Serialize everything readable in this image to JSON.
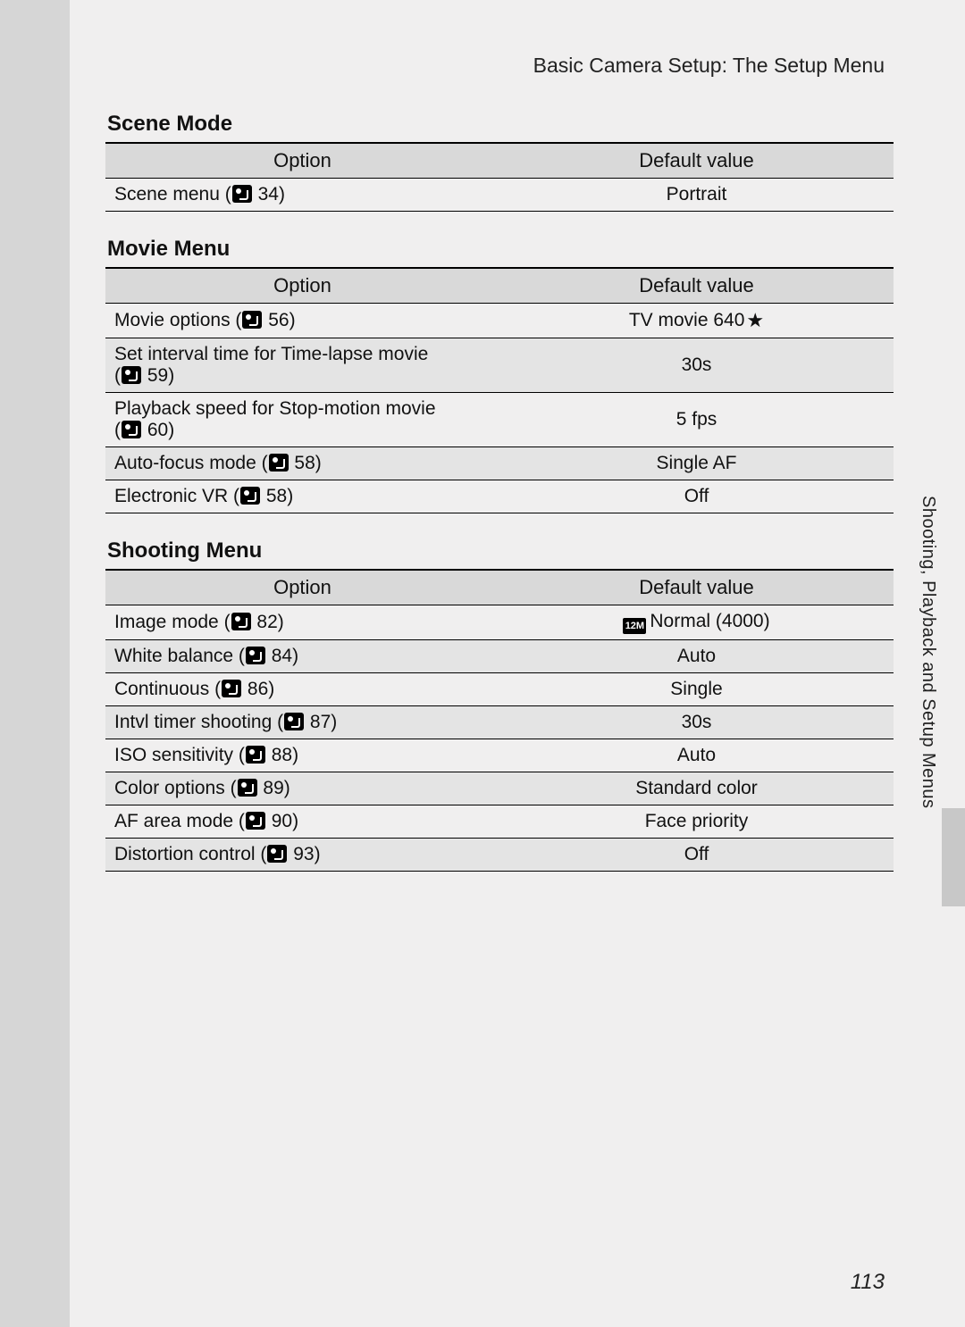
{
  "header": "Basic Camera Setup: The Setup Menu",
  "sideLabel": "Shooting, Playback and Setup Menus",
  "pageNumber": "113",
  "columns": {
    "option": "Option",
    "value": "Default value"
  },
  "sections": {
    "scene": {
      "title": "Scene Mode",
      "rows": [
        {
          "label": "Scene menu",
          "ref": "34",
          "value": "Portrait"
        }
      ]
    },
    "movie": {
      "title": "Movie Menu",
      "rows": [
        {
          "label": "Movie options",
          "ref": "56",
          "value": "TV movie 640",
          "valueStar": true
        },
        {
          "label": "Set interval time for Time-lapse movie",
          "ref": "59",
          "refNewline": true,
          "value": "30s"
        },
        {
          "label": "Playback speed for Stop-motion movie",
          "ref": "60",
          "refNewline": true,
          "value": "5 fps"
        },
        {
          "label": "Auto-focus mode",
          "ref": "58",
          "value": "Single AF"
        },
        {
          "label": "Electronic VR",
          "ref": "58",
          "value": "Off"
        }
      ]
    },
    "shooting": {
      "title": "Shooting Menu",
      "rows": [
        {
          "label": "Image mode",
          "ref": "82",
          "value": "Normal (4000)",
          "valueImgBadge": "12M"
        },
        {
          "label": "White balance",
          "ref": "84",
          "value": "Auto"
        },
        {
          "label": "Continuous",
          "ref": "86",
          "value": "Single"
        },
        {
          "label": "Intvl timer shooting",
          "ref": "87",
          "value": "30s"
        },
        {
          "label": "ISO sensitivity",
          "ref": "88",
          "value": "Auto"
        },
        {
          "label": "Color options",
          "ref": "89",
          "value": "Standard color"
        },
        {
          "label": "AF area mode",
          "ref": "90",
          "value": "Face priority"
        },
        {
          "label": "Distortion control",
          "ref": "93",
          "value": "Off"
        }
      ]
    }
  },
  "style": {
    "page_bg": "#f0efef",
    "outer_bg": "#d6d6d6",
    "header_row_bg": "#d9d9d9",
    "alt_row_bg": "#e4e4e4",
    "border_color": "#000000",
    "text_color": "#111111",
    "title_fontsize": 24,
    "header_fontsize": 23,
    "cell_fontsize": 21
  }
}
